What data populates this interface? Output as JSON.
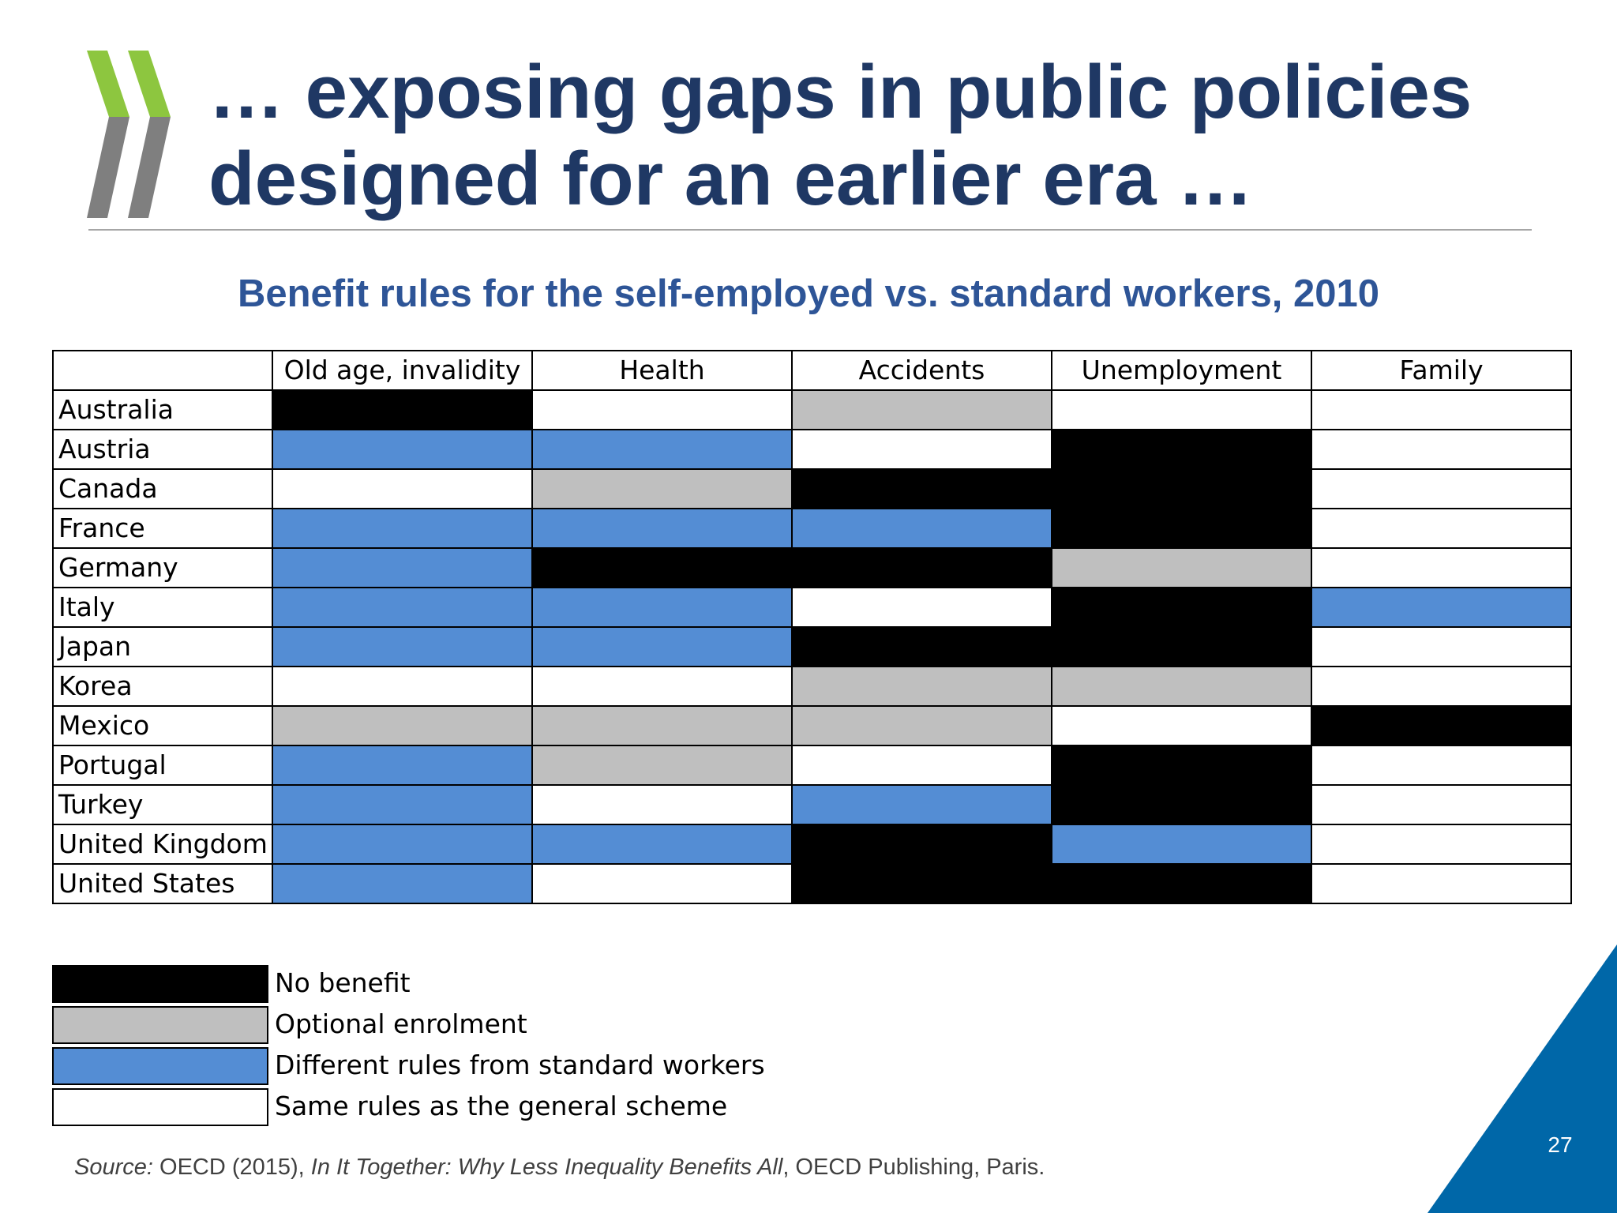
{
  "slide": {
    "title_line1": "… exposing gaps in public policies",
    "title_line2": "designed for an earlier era …",
    "subtitle": "Benefit rules for the self-employed vs. standard workers, 2010",
    "source_label": "Source:",
    "source_pre": " OECD (2015), ",
    "source_book": "In It Together: Why Less Inequality Benefits All",
    "source_post": ", OECD Publishing, Paris.",
    "page_number": "27"
  },
  "colors": {
    "title": "#1f3864",
    "subtitle": "#2e5597",
    "no_benefit": "#000000",
    "optional": "#bfbfbf",
    "different": "#548dd4",
    "same": "#ffffff",
    "logo_green": "#8dc63f",
    "logo_grey": "#7f7f7f",
    "corner_blue": "#0067a8"
  },
  "chart_data": {
    "type": "table",
    "title": "Benefit rules for the self-employed vs. standard workers, 2010",
    "columns": [
      "Old age, invalidity",
      "Health",
      "Accidents",
      "Unemployment",
      "Family"
    ],
    "categories": {
      "no_benefit": "No benefit",
      "optional": "Optional enrolment",
      "different": "Different rules from standard workers",
      "same": "Same rules as the general scheme"
    },
    "legend_order": [
      "no_benefit",
      "optional",
      "different",
      "same"
    ],
    "rows": [
      {
        "country": "Australia",
        "values": [
          "no_benefit",
          "same",
          "optional",
          "same",
          "same"
        ]
      },
      {
        "country": "Austria",
        "values": [
          "different",
          "different",
          "same",
          "no_benefit",
          "same"
        ]
      },
      {
        "country": "Canada",
        "values": [
          "same",
          "optional",
          "no_benefit",
          "no_benefit",
          "same"
        ]
      },
      {
        "country": "France",
        "values": [
          "different",
          "different",
          "different",
          "no_benefit",
          "same"
        ]
      },
      {
        "country": "Germany",
        "values": [
          "different",
          "no_benefit",
          "no_benefit",
          "optional",
          "same"
        ]
      },
      {
        "country": "Italy",
        "values": [
          "different",
          "different",
          "same",
          "no_benefit",
          "different"
        ]
      },
      {
        "country": "Japan",
        "values": [
          "different",
          "different",
          "no_benefit",
          "no_benefit",
          "same"
        ]
      },
      {
        "country": "Korea",
        "values": [
          "same",
          "same",
          "optional",
          "optional",
          "same"
        ]
      },
      {
        "country": "Mexico",
        "values": [
          "optional",
          "optional",
          "optional",
          "same",
          "no_benefit"
        ]
      },
      {
        "country": "Portugal",
        "values": [
          "different",
          "optional",
          "same",
          "no_benefit",
          "same"
        ]
      },
      {
        "country": "Turkey",
        "values": [
          "different",
          "same",
          "different",
          "no_benefit",
          "same"
        ]
      },
      {
        "country": "United Kingdom",
        "values": [
          "different",
          "different",
          "no_benefit",
          "different",
          "same"
        ]
      },
      {
        "country": "United States",
        "values": [
          "different",
          "same",
          "no_benefit",
          "no_benefit",
          "same"
        ]
      }
    ]
  }
}
